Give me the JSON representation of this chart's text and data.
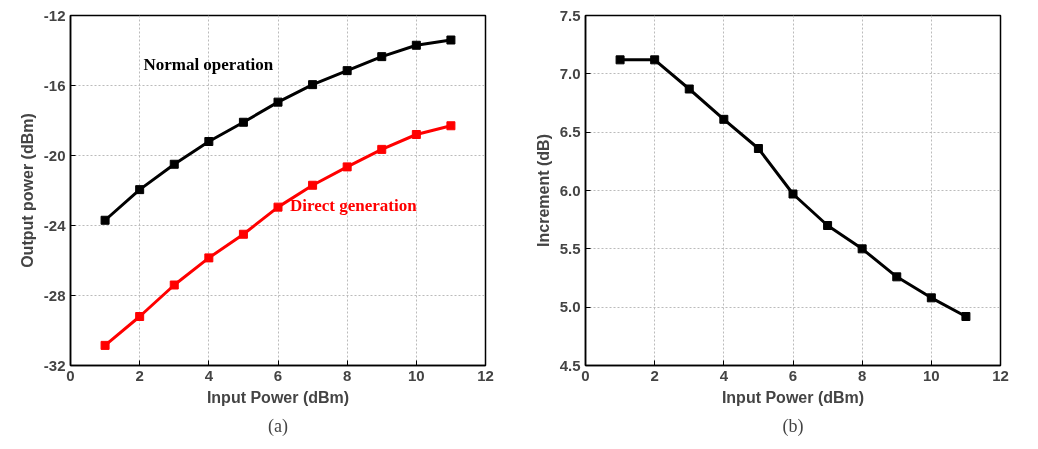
{
  "chart_data": [
    {
      "type": "line",
      "xlabel": "Input Power (dBm)",
      "ylabel": "Output power (dBm)",
      "x": [
        1,
        2,
        3,
        4,
        5,
        6,
        7,
        8,
        9,
        10,
        11
      ],
      "series": [
        {
          "name": "Normal operation",
          "color": "#000000",
          "values": [
            -23.7,
            -21.95,
            -20.5,
            -19.2,
            -18.1,
            -16.95,
            -15.95,
            -15.15,
            -14.35,
            -13.7,
            -13.4
          ]
        },
        {
          "name": "Direct generation",
          "color": "#ff0000",
          "values": [
            -30.85,
            -29.2,
            -27.4,
            -25.85,
            -24.5,
            -22.95,
            -21.7,
            -20.65,
            -19.65,
            -18.8,
            -18.3
          ]
        }
      ],
      "xlim": [
        0,
        12
      ],
      "xticks": [
        0,
        2,
        4,
        6,
        8,
        10,
        12
      ],
      "ylim": [
        -32,
        -12
      ],
      "yticks": [
        -32,
        -28,
        -24,
        -20,
        -16,
        -12
      ],
      "grid": true,
      "marker": "square",
      "line_style": "solid",
      "annotations": [
        "(a)"
      ]
    },
    {
      "type": "line",
      "xlabel": "Input Power (dBm)",
      "ylabel": "Increment (dB)",
      "x": [
        1,
        2,
        3,
        4,
        5,
        6,
        7,
        8,
        9,
        10,
        11
      ],
      "series": [
        {
          "color": "#000000",
          "values": [
            7.12,
            7.12,
            6.87,
            6.61,
            6.36,
            5.97,
            5.7,
            5.5,
            5.26,
            5.08,
            4.92
          ]
        }
      ],
      "xlim": [
        0,
        12
      ],
      "xticks": [
        0,
        2,
        4,
        6,
        8,
        10,
        12
      ],
      "ylim": [
        4.5,
        7.5
      ],
      "yticks": [
        4.5,
        {
          "value": 5,
          "label": "5.0"
        },
        5.5,
        {
          "value": 6,
          "label": "6.0"
        },
        6.5,
        {
          "value": 7,
          "label": "7.0"
        },
        7.5
      ],
      "grid": true,
      "marker": "square",
      "line_style": "solid",
      "annotations": [
        "(b)"
      ]
    }
  ]
}
